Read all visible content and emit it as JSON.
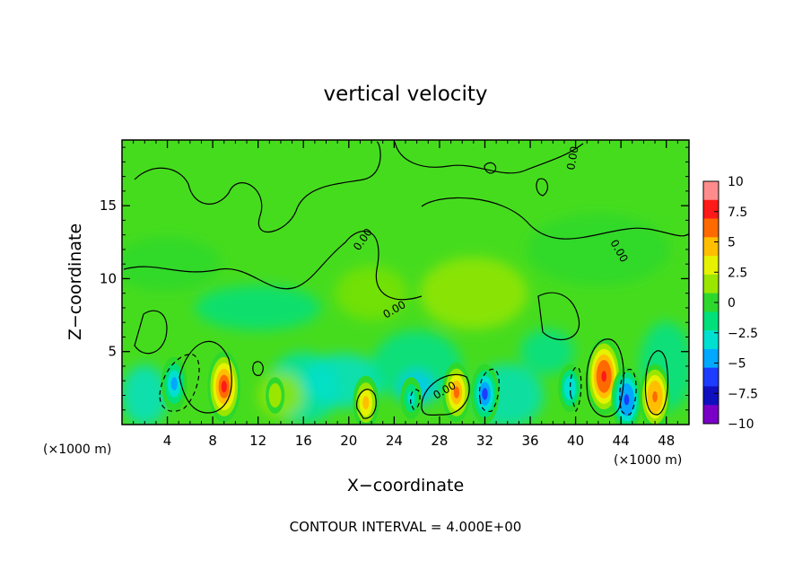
{
  "chart_data": {
    "type": "heatmap",
    "title": "vertical velocity",
    "xlabel": "X−coordinate",
    "ylabel": "Z−coordinate",
    "x_unit": "(×1000 m)",
    "x_unit_right": "(×1000 m)",
    "xlim": [
      0,
      50
    ],
    "ylim": [
      0,
      19.5
    ],
    "x_ticks": [
      4,
      8,
      12,
      16,
      20,
      24,
      28,
      32,
      36,
      40,
      44,
      48
    ],
    "y_ticks": [
      5,
      10,
      15
    ],
    "colorbar": {
      "range": [
        -10,
        10
      ],
      "ticks": [
        "10",
        "7.5",
        "5",
        "2.5",
        "0",
        "−2.5",
        "−5",
        "−7.5",
        "−10"
      ],
      "colors": [
        "#ff8c8c",
        "#ff1a1a",
        "#ff6a00",
        "#ffbf00",
        "#e6f200",
        "#9ae600",
        "#2dd82d",
        "#00e07a",
        "#00e0d0",
        "#00a8ff",
        "#1c3cff",
        "#1010c0",
        "#7a00c8"
      ]
    },
    "features": [
      {
        "x": 4.6,
        "z": 2.8,
        "value": -5
      },
      {
        "x": 9.0,
        "z": 2.6,
        "value": 8
      },
      {
        "x": 13.5,
        "z": 2.0,
        "value": 2
      },
      {
        "x": 21.5,
        "z": 1.5,
        "value": 5
      },
      {
        "x": 29.5,
        "z": 2.2,
        "value": 6
      },
      {
        "x": 32.0,
        "z": 2.1,
        "value": -6
      },
      {
        "x": 42.5,
        "z": 3.3,
        "value": 9
      },
      {
        "x": 44.5,
        "z": 1.7,
        "value": -7
      },
      {
        "x": 47.0,
        "z": 1.9,
        "value": 7
      },
      {
        "x": 39.5,
        "z": 2.5,
        "value": -4
      },
      {
        "x": 25.5,
        "z": 1.8,
        "value": -3
      }
    ],
    "contour_labels": [
      "0.00",
      "0.00",
      "0.00",
      "0.00",
      "0.00"
    ],
    "annotation": "CONTOUR INTERVAL =  4.000E+00"
  }
}
